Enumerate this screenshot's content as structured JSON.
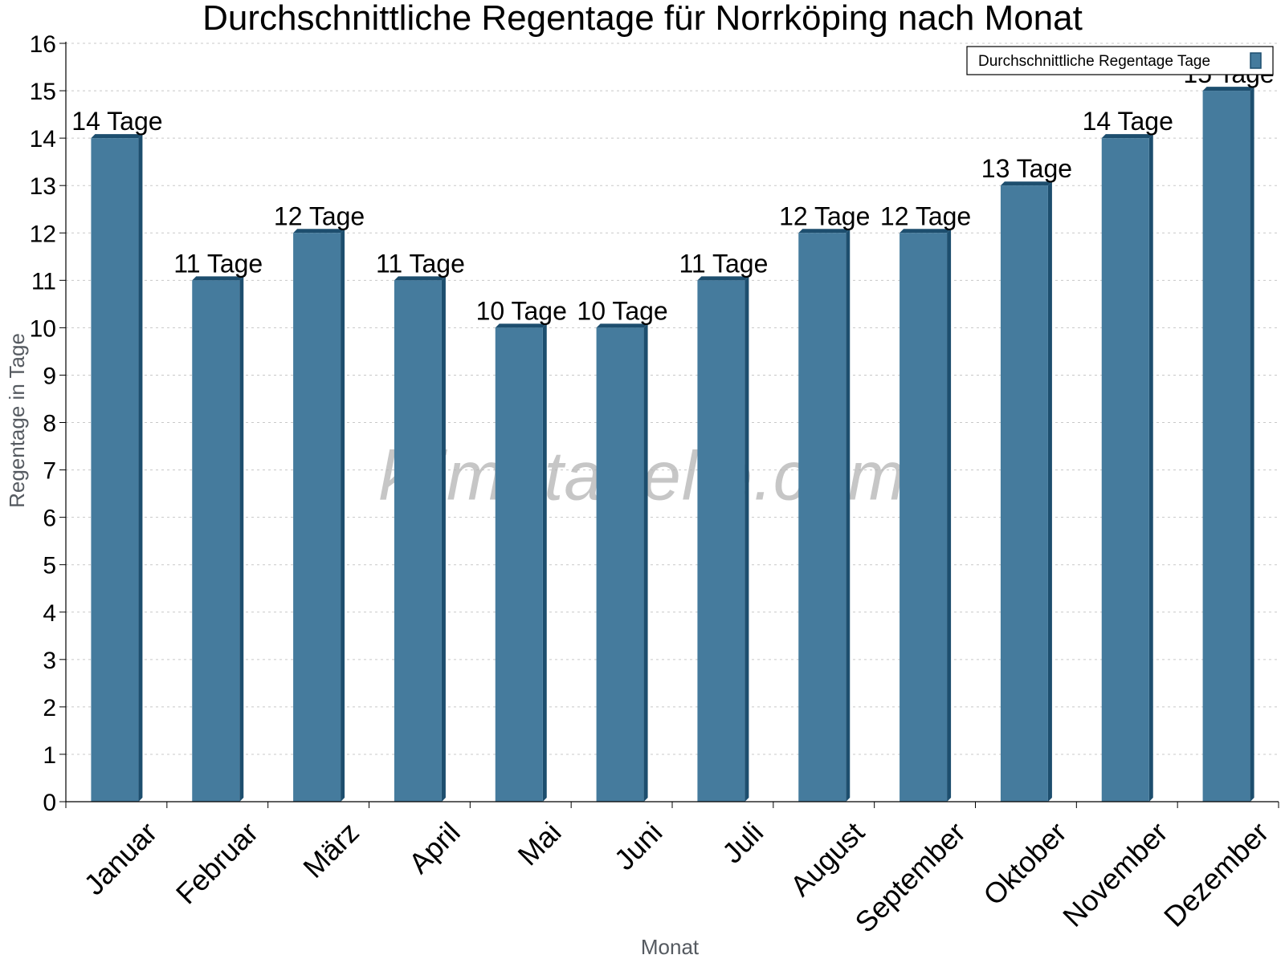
{
  "chart_data": {
    "type": "bar",
    "title": "Durchschnittliche Regentage für Norrköping nach Monat",
    "xlabel": "Monat",
    "ylabel": "Regentage in Tage",
    "ylim": [
      0,
      16
    ],
    "y_ticks": [
      "0",
      "1",
      "2",
      "3",
      "4",
      "5",
      "6",
      "7",
      "8",
      "9",
      "10",
      "11",
      "12",
      "13",
      "14",
      "15",
      "16"
    ],
    "grid": true,
    "legend_position": "top-right",
    "categories": [
      "Januar",
      "Februar",
      "März",
      "April",
      "Mai",
      "Juni",
      "Juli",
      "August",
      "September",
      "Oktober",
      "November",
      "Dezember"
    ],
    "series": [
      {
        "name": "Durchschnittliche Regentage Tage",
        "values": [
          14,
          11,
          12,
          11,
          10,
          10,
          11,
          12,
          12,
          13,
          14,
          15
        ],
        "data_labels": [
          "14 Tage",
          "11 Tage",
          "12 Tage",
          "11 Tage",
          "10 Tage",
          "10 Tage",
          "11 Tage",
          "12 Tage",
          "12 Tage",
          "13 Tage",
          "14 Tage",
          "15 Tage"
        ]
      }
    ],
    "watermark": "klimatabelle.com",
    "colors": {
      "bar_face": "#457b9d",
      "bar_side": "#1d4e6e",
      "bar_top": "#1d4e6e",
      "grid": "#c8c8c8",
      "axis": "#000000"
    }
  }
}
